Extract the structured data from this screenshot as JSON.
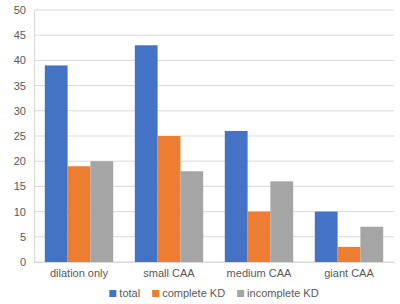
{
  "chart_data": {
    "type": "bar",
    "categories": [
      "dilation only",
      "small CAA",
      "medium CAA",
      "giant CAA"
    ],
    "series": [
      {
        "name": "total",
        "color": "#4472c4",
        "values": [
          39,
          43,
          26,
          10
        ]
      },
      {
        "name": "complete KD",
        "color": "#ed7d31",
        "values": [
          19,
          25,
          10,
          3
        ]
      },
      {
        "name": "incomplete KD",
        "color": "#a5a5a5",
        "values": [
          20,
          18,
          16,
          7
        ]
      }
    ],
    "ylim": [
      0,
      50
    ],
    "yticks": [
      0,
      5,
      10,
      15,
      20,
      25,
      30,
      35,
      40,
      45,
      50
    ],
    "grid": true,
    "legend": "bottom"
  }
}
